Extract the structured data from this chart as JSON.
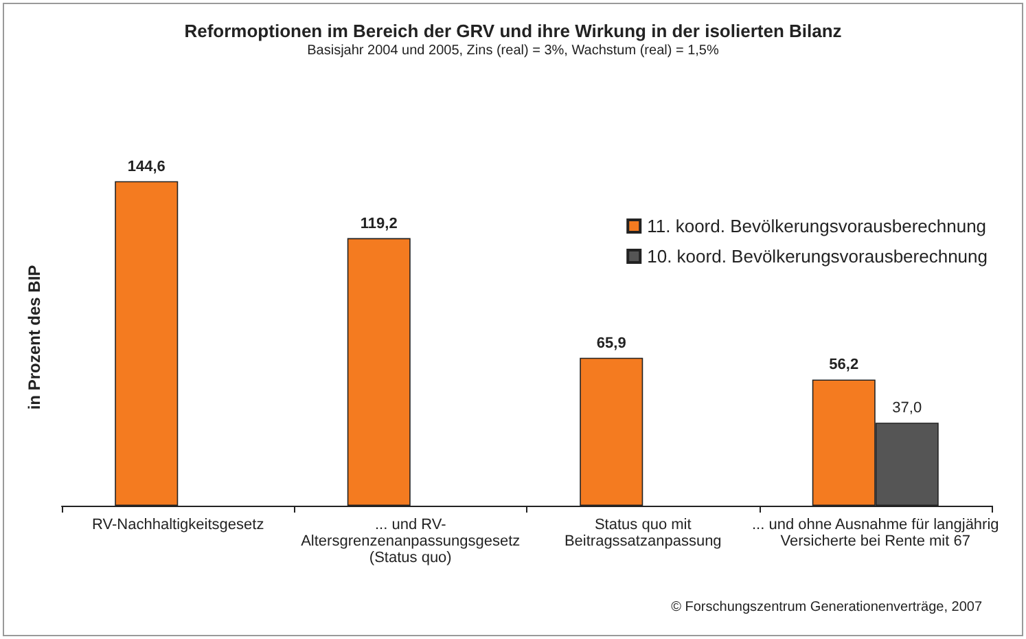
{
  "chart_data": {
    "type": "bar",
    "title": "Reformoptionen im Bereich der GRV und ihre Wirkung in der isolierten Bilanz",
    "subtitle": "Basisjahr 2004 und 2005, Zins (real) = 3%, Wachstum (real) = 1,5%",
    "ylabel": "in Prozent des BIP",
    "categories": [
      "RV-Nachhaltigkeitsgesetz",
      "... und RV-\nAltersgrenzenanpassungsgesetz\n(Status quo)",
      "Status quo mit\nBeitragssatzanpassung",
      "... und ohne Ausnahme für langjährig\nVersicherte bei Rente mit 67"
    ],
    "series": [
      {
        "name": "11. koord. Bevölkerungsvorausberechnung",
        "color": "#f47b20",
        "values": [
          144.6,
          119.2,
          65.9,
          56.2
        ],
        "value_labels": [
          "144,6",
          "119,2",
          "65,9",
          "56,2"
        ]
      },
      {
        "name": "10. koord. Bevölkerungsvorausberechnung",
        "color": "#555555",
        "values": [
          null,
          null,
          null,
          37.0
        ],
        "value_labels": [
          null,
          null,
          null,
          "37,0"
        ]
      }
    ],
    "legend": "top right",
    "tick_labels": "x",
    "grid": false,
    "annotations": [
      "© Forschungszentrum Generationenverträge, 2007"
    ]
  }
}
